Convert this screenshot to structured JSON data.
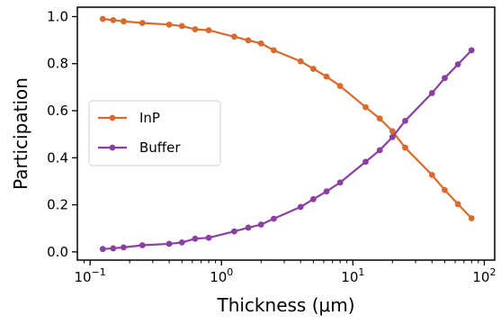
{
  "chart_data": {
    "type": "line",
    "xlabel": "Thickness (μm)",
    "ylabel": "Participation",
    "x_scale": "log",
    "xlim": [
      0.08,
      120
    ],
    "ylim": [
      -0.035,
      1.04
    ],
    "x_ticks": [
      {
        "value": 0.1,
        "base": "10",
        "exp": "−1"
      },
      {
        "value": 1,
        "base": "10",
        "exp": "0"
      },
      {
        "value": 10,
        "base": "10",
        "exp": "1"
      },
      {
        "value": 100,
        "base": "10",
        "exp": "2"
      }
    ],
    "y_ticks": [
      {
        "value": 0.0,
        "label": "0.0"
      },
      {
        "value": 0.2,
        "label": "0.2"
      },
      {
        "value": 0.4,
        "label": "0.4"
      },
      {
        "value": 0.6,
        "label": "0.6"
      },
      {
        "value": 0.8,
        "label": "0.8"
      },
      {
        "value": 1.0,
        "label": "1.0"
      }
    ],
    "grid": false,
    "legend_position": "center-left",
    "x": [
      0.125,
      0.15,
      0.18,
      0.25,
      0.4,
      0.5,
      0.63,
      0.8,
      1.25,
      1.6,
      2.0,
      2.5,
      4.0,
      5.0,
      6.3,
      8.0,
      12.5,
      16,
      20,
      25,
      40,
      50,
      63,
      80
    ],
    "series": [
      {
        "name": "InP",
        "color": "#d9692c",
        "values": [
          0.99,
          0.985,
          0.98,
          0.973,
          0.966,
          0.96,
          0.946,
          0.942,
          0.915,
          0.899,
          0.886,
          0.857,
          0.81,
          0.778,
          0.745,
          0.705,
          0.615,
          0.567,
          0.513,
          0.443,
          0.327,
          0.263,
          0.203,
          0.143
        ]
      },
      {
        "name": "Buffer",
        "color": "#8b3fa3",
        "values": [
          0.012,
          0.015,
          0.019,
          0.028,
          0.034,
          0.04,
          0.056,
          0.06,
          0.087,
          0.103,
          0.116,
          0.141,
          0.191,
          0.224,
          0.257,
          0.295,
          0.383,
          0.432,
          0.488,
          0.557,
          0.675,
          0.739,
          0.797,
          0.857
        ]
      }
    ]
  }
}
